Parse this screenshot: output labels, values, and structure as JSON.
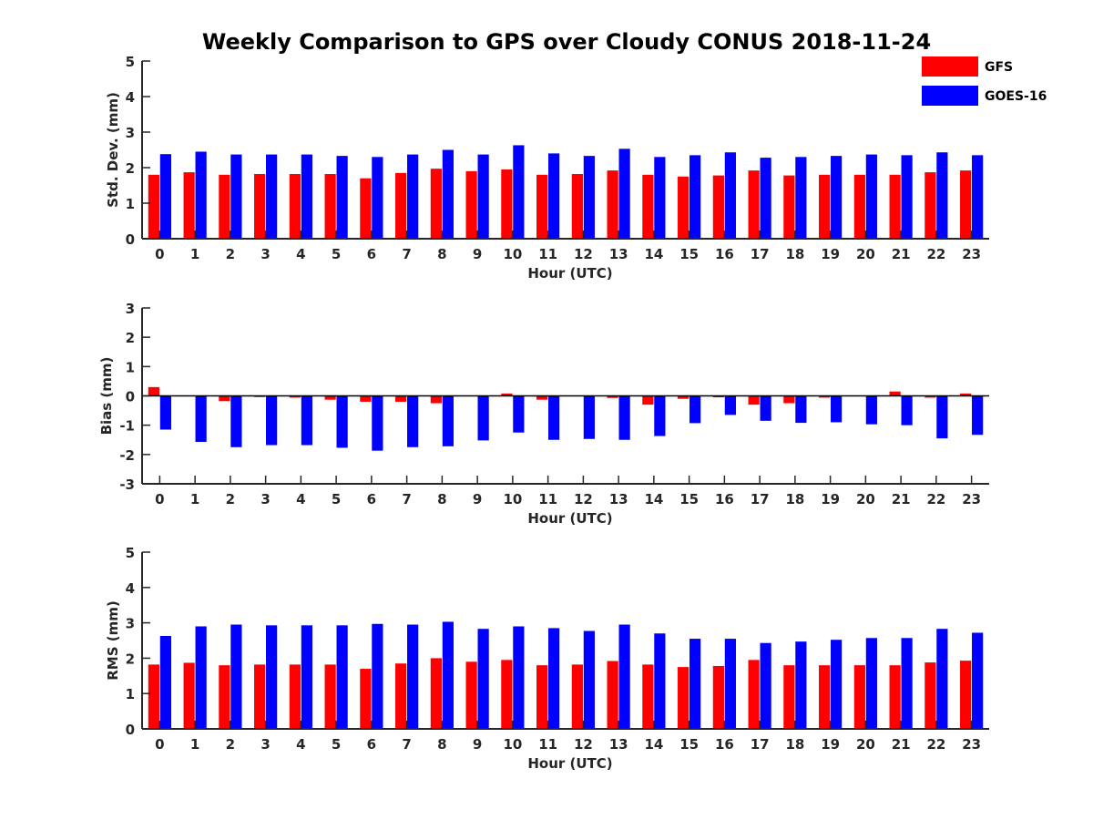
{
  "figure_title": "Weekly Comparison to GPS over Cloudy CONUS 2018-11-24",
  "legend": [
    {
      "label": "GFS",
      "color": "#ff0000"
    },
    {
      "label": "GOES-16",
      "color": "#0000ff"
    }
  ],
  "chart_data": [
    {
      "type": "bar",
      "ylabel": "Std. Dev. (mm)",
      "xlabel": "Hour (UTC)",
      "ylim": [
        0,
        5
      ],
      "yticks": [
        0,
        1,
        2,
        3,
        4,
        5
      ],
      "categories": [
        "0",
        "1",
        "2",
        "3",
        "4",
        "5",
        "6",
        "7",
        "8",
        "9",
        "10",
        "11",
        "12",
        "13",
        "14",
        "15",
        "16",
        "17",
        "18",
        "19",
        "20",
        "21",
        "22",
        "23"
      ],
      "series": [
        {
          "name": "GFS",
          "color": "#ff0000",
          "values": [
            1.8,
            1.87,
            1.8,
            1.82,
            1.82,
            1.82,
            1.7,
            1.85,
            1.97,
            1.9,
            1.95,
            1.8,
            1.82,
            1.92,
            1.8,
            1.75,
            1.78,
            1.92,
            1.78,
            1.8,
            1.8,
            1.8,
            1.87,
            1.92
          ]
        },
        {
          "name": "GOES-16",
          "color": "#0000ff",
          "values": [
            2.38,
            2.45,
            2.37,
            2.37,
            2.37,
            2.33,
            2.3,
            2.37,
            2.5,
            2.37,
            2.63,
            2.4,
            2.33,
            2.53,
            2.3,
            2.35,
            2.43,
            2.28,
            2.3,
            2.33,
            2.37,
            2.35,
            2.43,
            2.35
          ]
        }
      ]
    },
    {
      "type": "bar",
      "ylabel": "Bias (mm)",
      "xlabel": "Hour (UTC)",
      "ylim": [
        -3,
        3
      ],
      "yticks": [
        -3,
        -2,
        -1,
        0,
        1,
        2,
        3
      ],
      "categories": [
        "0",
        "1",
        "2",
        "3",
        "4",
        "5",
        "6",
        "7",
        "8",
        "9",
        "10",
        "11",
        "12",
        "13",
        "14",
        "15",
        "16",
        "17",
        "18",
        "19",
        "20",
        "21",
        "22",
        "23"
      ],
      "series": [
        {
          "name": "GFS",
          "color": "#ff0000",
          "values": [
            0.3,
            0.0,
            -0.18,
            -0.04,
            -0.06,
            -0.13,
            -0.2,
            -0.2,
            -0.25,
            0.0,
            0.08,
            -0.13,
            0.0,
            -0.07,
            -0.3,
            -0.1,
            -0.05,
            -0.3,
            -0.25,
            -0.06,
            0.0,
            0.15,
            -0.06,
            0.08
          ]
        },
        {
          "name": "GOES-16",
          "color": "#0000ff",
          "values": [
            -1.15,
            -1.57,
            -1.75,
            -1.68,
            -1.68,
            -1.77,
            -1.87,
            -1.75,
            -1.72,
            -1.52,
            -1.25,
            -1.5,
            -1.47,
            -1.5,
            -1.37,
            -0.93,
            -0.65,
            -0.85,
            -0.92,
            -0.9,
            -0.97,
            -1.0,
            -1.45,
            -1.33
          ]
        }
      ]
    },
    {
      "type": "bar",
      "ylabel": "RMS (mm)",
      "xlabel": "Hour (UTC)",
      "ylim": [
        0,
        5
      ],
      "yticks": [
        0,
        1,
        2,
        3,
        4,
        5
      ],
      "categories": [
        "0",
        "1",
        "2",
        "3",
        "4",
        "5",
        "6",
        "7",
        "8",
        "9",
        "10",
        "11",
        "12",
        "13",
        "14",
        "15",
        "16",
        "17",
        "18",
        "19",
        "20",
        "21",
        "22",
        "23"
      ],
      "series": [
        {
          "name": "GFS",
          "color": "#ff0000",
          "values": [
            1.82,
            1.87,
            1.8,
            1.82,
            1.82,
            1.82,
            1.7,
            1.85,
            2.0,
            1.9,
            1.95,
            1.8,
            1.82,
            1.92,
            1.82,
            1.75,
            1.78,
            1.95,
            1.8,
            1.8,
            1.8,
            1.8,
            1.88,
            1.93
          ]
        },
        {
          "name": "GOES-16",
          "color": "#0000ff",
          "values": [
            2.63,
            2.9,
            2.95,
            2.93,
            2.93,
            2.93,
            2.97,
            2.95,
            3.03,
            2.83,
            2.9,
            2.85,
            2.77,
            2.95,
            2.7,
            2.55,
            2.55,
            2.43,
            2.47,
            2.52,
            2.57,
            2.57,
            2.83,
            2.72
          ]
        }
      ]
    }
  ]
}
